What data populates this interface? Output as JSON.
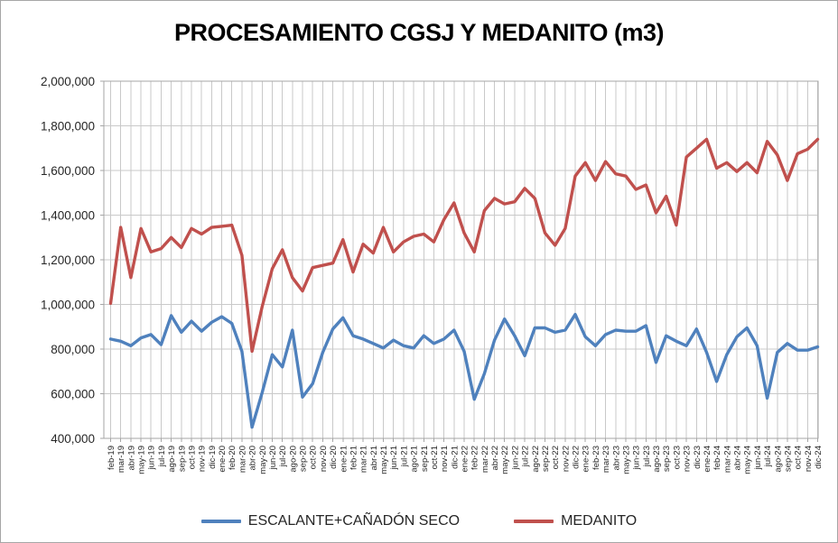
{
  "chart_data": {
    "type": "line",
    "title": "PROCESAMIENTO CGSJ Y MEDANITO (m3)",
    "xlabel": "",
    "ylabel": "",
    "ylim": [
      400000,
      2000000
    ],
    "y_step": 200000,
    "y_tick_labels": [
      "400,000",
      "600,000",
      "800,000",
      "1,000,000",
      "1,200,000",
      "1,400,000",
      "1,600,000",
      "1,800,000",
      "2,000,000"
    ],
    "grid": "both",
    "legend_position": "bottom",
    "categories": [
      "feb-19",
      "mar-19",
      "abr-19",
      "may-19",
      "jun-19",
      "jul-19",
      "ago-19",
      "sep-19",
      "oct-19",
      "nov-19",
      "dic-19",
      "ene-20",
      "feb-20",
      "mar-20",
      "abr-20",
      "may-20",
      "jun-20",
      "jul-20",
      "ago-20",
      "sep-20",
      "oct-20",
      "nov-20",
      "dic-20",
      "ene-21",
      "feb-21",
      "mar-21",
      "abr-21",
      "may-21",
      "jun-21",
      "jul-21",
      "ago-21",
      "sep-21",
      "oct-21",
      "nov-21",
      "dic-21",
      "ene-22",
      "feb-22",
      "mar-22",
      "abr-22",
      "may-22",
      "jun-22",
      "jul-22",
      "ago-22",
      "sep-22",
      "oct-22",
      "nov-22",
      "dic-22",
      "ene-23",
      "feb-23",
      "mar-23",
      "abr-23",
      "may-23",
      "jun-23",
      "jul-23",
      "ago-23",
      "sep-23",
      "oct-23",
      "nov-23",
      "dic-23",
      "ene-24",
      "feb-24",
      "mar-24",
      "abr-24",
      "may-24",
      "jun-24",
      "jul-24",
      "ago-24",
      "sep-24",
      "oct-24",
      "nov-24",
      "dic-24"
    ],
    "series": [
      {
        "name": "ESCALANTE+CAÑADÓN SECO",
        "color": "#4f81bd",
        "values": [
          845000,
          835000,
          815000,
          850000,
          865000,
          820000,
          950000,
          875000,
          925000,
          880000,
          920000,
          945000,
          915000,
          790000,
          450000,
          605000,
          775000,
          720000,
          885000,
          585000,
          645000,
          785000,
          890000,
          940000,
          860000,
          845000,
          825000,
          805000,
          840000,
          815000,
          805000,
          860000,
          825000,
          845000,
          885000,
          790000,
          575000,
          690000,
          840000,
          935000,
          860000,
          770000,
          895000,
          895000,
          875000,
          885000,
          955000,
          855000,
          815000,
          865000,
          885000,
          880000,
          880000,
          905000,
          740000,
          860000,
          835000,
          815000,
          890000,
          785000,
          655000,
          775000,
          855000,
          895000,
          815000,
          580000,
          785000,
          825000,
          795000,
          795000,
          810000
        ]
      },
      {
        "name": "MEDANITO",
        "color": "#c0504d",
        "values": [
          1005000,
          1345000,
          1120000,
          1340000,
          1235000,
          1250000,
          1300000,
          1255000,
          1340000,
          1315000,
          1345000,
          1350000,
          1355000,
          1220000,
          790000,
          990000,
          1160000,
          1245000,
          1120000,
          1060000,
          1165000,
          1175000,
          1185000,
          1290000,
          1145000,
          1270000,
          1230000,
          1345000,
          1235000,
          1280000,
          1305000,
          1315000,
          1280000,
          1380000,
          1455000,
          1320000,
          1235000,
          1420000,
          1475000,
          1450000,
          1460000,
          1520000,
          1475000,
          1320000,
          1265000,
          1340000,
          1575000,
          1635000,
          1555000,
          1640000,
          1585000,
          1575000,
          1515000,
          1535000,
          1410000,
          1485000,
          1355000,
          1660000,
          1700000,
          1740000,
          1610000,
          1635000,
          1595000,
          1635000,
          1590000,
          1730000,
          1670000,
          1555000,
          1675000,
          1695000,
          1740000
        ]
      }
    ]
  },
  "legend": {
    "items": [
      {
        "label": "ESCALANTE+CAÑADÓN SECO",
        "color": "#4f81bd"
      },
      {
        "label": "MEDANITO",
        "color": "#c0504d"
      }
    ]
  }
}
